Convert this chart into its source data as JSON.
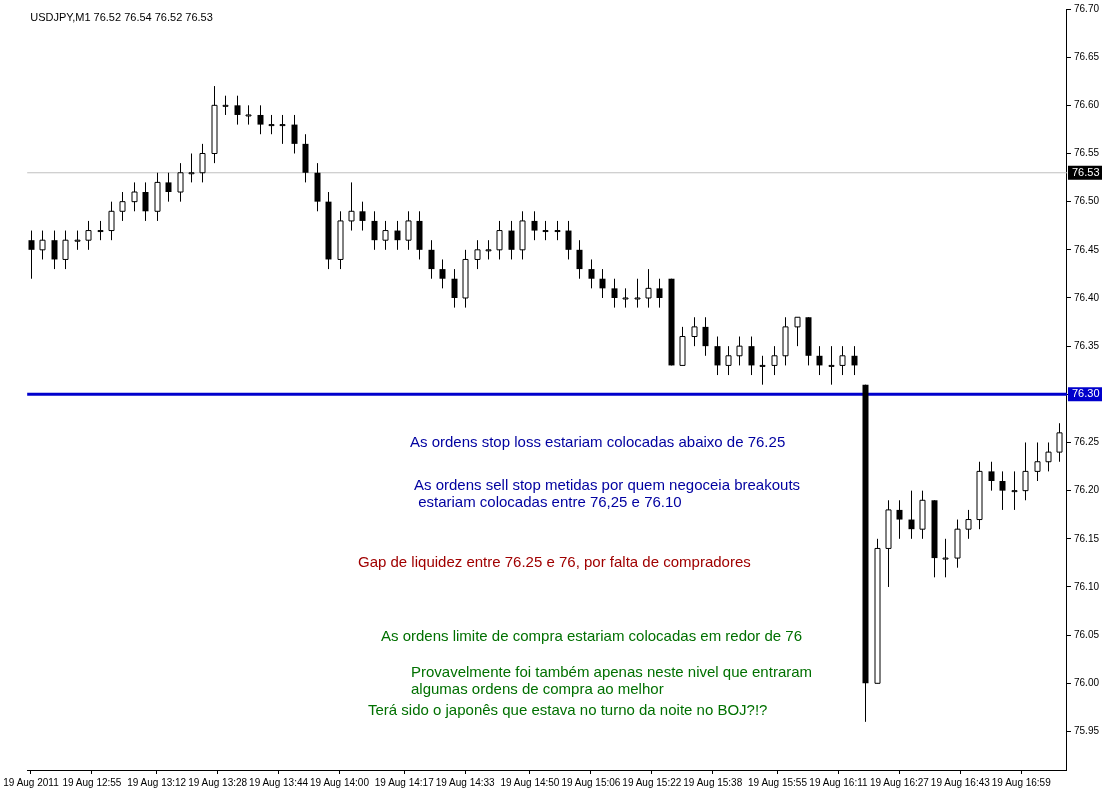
{
  "chart_data": {
    "type": "candlestick",
    "title": "USDJPY,M1 76.52 76.54 76.52 76.53",
    "x": [
      "2011-08-19T12:39",
      "2011-08-19T12:42",
      "2011-08-19T12:45",
      "2011-08-19T12:48",
      "2011-08-19T12:51",
      "2011-08-19T12:54",
      "2011-08-19T12:57",
      "2011-08-19T13:00",
      "2011-08-19T13:03",
      "2011-08-19T13:06",
      "2011-08-19T13:09",
      "2011-08-19T13:12",
      "2011-08-19T13:15",
      "2011-08-19T13:18",
      "2011-08-19T13:21",
      "2011-08-19T13:24",
      "2011-08-19T13:27",
      "2011-08-19T13:30",
      "2011-08-19T13:33",
      "2011-08-19T13:36",
      "2011-08-19T13:39",
      "2011-08-19T13:42",
      "2011-08-19T13:45",
      "2011-08-19T13:48",
      "2011-08-19T13:51",
      "2011-08-19T13:54",
      "2011-08-19T13:57",
      "2011-08-19T14:00",
      "2011-08-19T14:03",
      "2011-08-19T14:06",
      "2011-08-19T14:09",
      "2011-08-19T14:12",
      "2011-08-19T14:15",
      "2011-08-19T14:18",
      "2011-08-19T14:21",
      "2011-08-19T14:24",
      "2011-08-19T14:27",
      "2011-08-19T14:30",
      "2011-08-19T14:33",
      "2011-08-19T14:36",
      "2011-08-19T14:39",
      "2011-08-19T14:42",
      "2011-08-19T14:45",
      "2011-08-19T14:48",
      "2011-08-19T14:51",
      "2011-08-19T14:54",
      "2011-08-19T14:57",
      "2011-08-19T15:00",
      "2011-08-19T15:03",
      "2011-08-19T15:06",
      "2011-08-19T15:09",
      "2011-08-19T15:12",
      "2011-08-19T15:15",
      "2011-08-19T15:18",
      "2011-08-19T15:21",
      "2011-08-19T15:24",
      "2011-08-19T15:27",
      "2011-08-19T15:30",
      "2011-08-19T15:33",
      "2011-08-19T15:36",
      "2011-08-19T15:39",
      "2011-08-19T15:42",
      "2011-08-19T15:45",
      "2011-08-19T15:48",
      "2011-08-19T15:51",
      "2011-08-19T15:54",
      "2011-08-19T15:57",
      "2011-08-19T16:00",
      "2011-08-19T16:03",
      "2011-08-19T16:06",
      "2011-08-19T16:09",
      "2011-08-19T16:12",
      "2011-08-19T16:15",
      "2011-08-19T16:18",
      "2011-08-19T16:21",
      "2011-08-19T16:24",
      "2011-08-19T16:27",
      "2011-08-19T16:30",
      "2011-08-19T16:33",
      "2011-08-19T16:36",
      "2011-08-19T16:39",
      "2011-08-19T16:42",
      "2011-08-19T16:45",
      "2011-08-19T16:48",
      "2011-08-19T16:51",
      "2011-08-19T16:54",
      "2011-08-19T16:57",
      "2011-08-19T17:00",
      "2011-08-19T17:03",
      "2011-08-19T17:06",
      "2011-08-19T17:09"
    ],
    "ohlc": [
      [
        76.46,
        76.47,
        76.42,
        76.45
      ],
      [
        76.45,
        76.47,
        76.44,
        76.46
      ],
      [
        76.46,
        76.47,
        76.43,
        76.44
      ],
      [
        76.44,
        76.47,
        76.43,
        76.46
      ],
      [
        76.46,
        76.47,
        76.45,
        76.46
      ],
      [
        76.46,
        76.48,
        76.45,
        76.47
      ],
      [
        76.47,
        76.48,
        76.46,
        76.47
      ],
      [
        76.47,
        76.5,
        76.46,
        76.49
      ],
      [
        76.49,
        76.51,
        76.48,
        76.5
      ],
      [
        76.5,
        76.52,
        76.49,
        76.51
      ],
      [
        76.51,
        76.52,
        76.48,
        76.49
      ],
      [
        76.49,
        76.53,
        76.48,
        76.52
      ],
      [
        76.52,
        76.53,
        76.5,
        76.51
      ],
      [
        76.51,
        76.54,
        76.5,
        76.53
      ],
      [
        76.53,
        76.55,
        76.52,
        76.53
      ],
      [
        76.53,
        76.56,
        76.52,
        76.55
      ],
      [
        76.55,
        76.62,
        76.54,
        76.6
      ],
      [
        76.6,
        76.61,
        76.59,
        76.6
      ],
      [
        76.6,
        76.61,
        76.58,
        76.59
      ],
      [
        76.59,
        76.6,
        76.58,
        76.59
      ],
      [
        76.59,
        76.6,
        76.57,
        76.58
      ],
      [
        76.58,
        76.59,
        76.57,
        76.58
      ],
      [
        76.58,
        76.59,
        76.56,
        76.58
      ],
      [
        76.58,
        76.59,
        76.55,
        76.56
      ],
      [
        76.56,
        76.57,
        76.52,
        76.53
      ],
      [
        76.53,
        76.54,
        76.49,
        76.5
      ],
      [
        76.5,
        76.51,
        76.43,
        76.44
      ],
      [
        76.44,
        76.49,
        76.43,
        76.48
      ],
      [
        76.48,
        76.52,
        76.47,
        76.49
      ],
      [
        76.49,
        76.5,
        76.47,
        76.48
      ],
      [
        76.48,
        76.49,
        76.45,
        76.46
      ],
      [
        76.46,
        76.48,
        76.45,
        76.47
      ],
      [
        76.47,
        76.48,
        76.45,
        76.46
      ],
      [
        76.46,
        76.49,
        76.45,
        76.48
      ],
      [
        76.48,
        76.49,
        76.44,
        76.45
      ],
      [
        76.45,
        76.46,
        76.42,
        76.43
      ],
      [
        76.43,
        76.44,
        76.41,
        76.42
      ],
      [
        76.42,
        76.43,
        76.39,
        76.4
      ],
      [
        76.4,
        76.45,
        76.39,
        76.44
      ],
      [
        76.44,
        76.46,
        76.43,
        76.45
      ],
      [
        76.45,
        76.46,
        76.44,
        76.45
      ],
      [
        76.45,
        76.48,
        76.44,
        76.47
      ],
      [
        76.47,
        76.48,
        76.44,
        76.45
      ],
      [
        76.45,
        76.49,
        76.44,
        76.48
      ],
      [
        76.48,
        76.49,
        76.46,
        76.47
      ],
      [
        76.47,
        76.48,
        76.46,
        76.47
      ],
      [
        76.47,
        76.48,
        76.46,
        76.47
      ],
      [
        76.47,
        76.48,
        76.44,
        76.45
      ],
      [
        76.45,
        76.46,
        76.42,
        76.43
      ],
      [
        76.43,
        76.44,
        76.41,
        76.42
      ],
      [
        76.42,
        76.43,
        76.4,
        76.41
      ],
      [
        76.41,
        76.42,
        76.39,
        76.4
      ],
      [
        76.4,
        76.41,
        76.39,
        76.4
      ],
      [
        76.4,
        76.42,
        76.39,
        76.4
      ],
      [
        76.4,
        76.43,
        76.39,
        76.41
      ],
      [
        76.41,
        76.42,
        76.39,
        76.4
      ],
      [
        76.42,
        76.42,
        76.33,
        76.33
      ],
      [
        76.33,
        76.37,
        76.33,
        76.36
      ],
      [
        76.36,
        76.38,
        76.35,
        76.37
      ],
      [
        76.37,
        76.38,
        76.34,
        76.35
      ],
      [
        76.35,
        76.36,
        76.32,
        76.33
      ],
      [
        76.33,
        76.35,
        76.32,
        76.34
      ],
      [
        76.34,
        76.36,
        76.33,
        76.35
      ],
      [
        76.35,
        76.36,
        76.32,
        76.33
      ],
      [
        76.33,
        76.34,
        76.31,
        76.33
      ],
      [
        76.33,
        76.35,
        76.32,
        76.34
      ],
      [
        76.34,
        76.38,
        76.33,
        76.37
      ],
      [
        76.37,
        76.38,
        76.35,
        76.38
      ],
      [
        76.38,
        76.38,
        76.33,
        76.34
      ],
      [
        76.34,
        76.35,
        76.32,
        76.33
      ],
      [
        76.33,
        76.35,
        76.31,
        76.33
      ],
      [
        76.33,
        76.35,
        76.32,
        76.34
      ],
      [
        76.34,
        76.35,
        76.32,
        76.33
      ],
      [
        76.31,
        76.31,
        75.96,
        76.0
      ],
      [
        76.0,
        76.15,
        76.0,
        76.14
      ],
      [
        76.14,
        76.19,
        76.1,
        76.18
      ],
      [
        76.18,
        76.19,
        76.15,
        76.17
      ],
      [
        76.17,
        76.2,
        76.15,
        76.16
      ],
      [
        76.16,
        76.2,
        76.15,
        76.19
      ],
      [
        76.19,
        76.19,
        76.11,
        76.13
      ],
      [
        76.13,
        76.15,
        76.11,
        76.13
      ],
      [
        76.13,
        76.17,
        76.12,
        76.16
      ],
      [
        76.16,
        76.18,
        76.15,
        76.17
      ],
      [
        76.17,
        76.23,
        76.16,
        76.22
      ],
      [
        76.22,
        76.23,
        76.2,
        76.21
      ],
      [
        76.21,
        76.22,
        76.18,
        76.2
      ],
      [
        76.2,
        76.22,
        76.18,
        76.2
      ],
      [
        76.2,
        76.25,
        76.19,
        76.22
      ],
      [
        76.22,
        76.25,
        76.21,
        76.23
      ],
      [
        76.23,
        76.25,
        76.22,
        76.24
      ],
      [
        76.24,
        76.27,
        76.23,
        76.26
      ]
    ],
    "xlim": [
      "2011-08-19T12:38",
      "2011-08-19T17:11"
    ],
    "xticks": [
      {
        "value": "2011-08-19T12:39",
        "label": "19 Aug 2011"
      },
      {
        "value": "2011-08-19T12:55",
        "label": "19 Aug 12:55"
      },
      {
        "value": "2011-08-19T13:12",
        "label": "19 Aug 13:12"
      },
      {
        "value": "2011-08-19T13:28",
        "label": "19 Aug 13:28"
      },
      {
        "value": "2011-08-19T13:44",
        "label": "19 Aug 13:44"
      },
      {
        "value": "2011-08-19T14:00",
        "label": "19 Aug 14:00"
      },
      {
        "value": "2011-08-19T14:17",
        "label": "19 Aug 14:17"
      },
      {
        "value": "2011-08-19T14:33",
        "label": "19 Aug 14:33"
      },
      {
        "value": "2011-08-19T14:50",
        "label": "19 Aug 14:50"
      },
      {
        "value": "2011-08-19T15:06",
        "label": "19 Aug 15:06"
      },
      {
        "value": "2011-08-19T15:22",
        "label": "19 Aug 15:22"
      },
      {
        "value": "2011-08-19T15:38",
        "label": "19 Aug 15:38"
      },
      {
        "value": "2011-08-19T15:55",
        "label": "19 Aug 15:55"
      },
      {
        "value": "2011-08-19T16:11",
        "label": "19 Aug 16:11"
      },
      {
        "value": "2011-08-19T16:27",
        "label": "19 Aug 16:27"
      },
      {
        "value": "2011-08-19T16:43",
        "label": "19 Aug 16:43"
      },
      {
        "value": "2011-08-19T16:59",
        "label": "19 Aug 16:59"
      }
    ],
    "ylim": [
      75.91,
      76.7
    ],
    "yticks": [
      {
        "value": 75.95,
        "label": "75.95"
      },
      {
        "value": 76.0,
        "label": "76.00"
      },
      {
        "value": 76.05,
        "label": "76.05"
      },
      {
        "value": 76.1,
        "label": "76.10"
      },
      {
        "value": 76.15,
        "label": "76.15"
      },
      {
        "value": 76.2,
        "label": "76.20"
      },
      {
        "value": 76.25,
        "label": "76.25"
      },
      {
        "value": 76.3,
        "label": "76.30"
      },
      {
        "value": 76.35,
        "label": "76.35"
      },
      {
        "value": 76.4,
        "label": "76.40"
      },
      {
        "value": 76.45,
        "label": "76.45"
      },
      {
        "value": 76.5,
        "label": "76.50"
      },
      {
        "value": 76.55,
        "label": "76.55"
      },
      {
        "value": 76.6,
        "label": "76.60"
      },
      {
        "value": 76.65,
        "label": "76.65"
      },
      {
        "value": 76.7,
        "label": "76.70"
      }
    ],
    "ref_lines": [
      {
        "axis": "y",
        "value": 76.53,
        "label": "76.53",
        "color": "#c0c0c0"
      },
      {
        "axis": "y",
        "value": 76.3,
        "label": "76.30",
        "color": "#0000cc"
      }
    ],
    "annotations": [
      "As ordens stop loss estariam colocadas abaixo de 76.25",
      "As ordens sell stop metidas por quem negoceia breakouts\n estariam colocadas entre 76,25 e 76.10",
      "Gap de liquidez entre 76.25 e 76, por falta de compradores",
      "As ordens limite de compra estariam colocadas em redor de 76",
      "Provavelmente foi também apenas neste nivel que entraram\nalgumas ordens de compra ao melhor",
      "Terá sido o japonês que estava no turno da noite no BOJ?!?"
    ],
    "grid": false,
    "legend": false
  }
}
